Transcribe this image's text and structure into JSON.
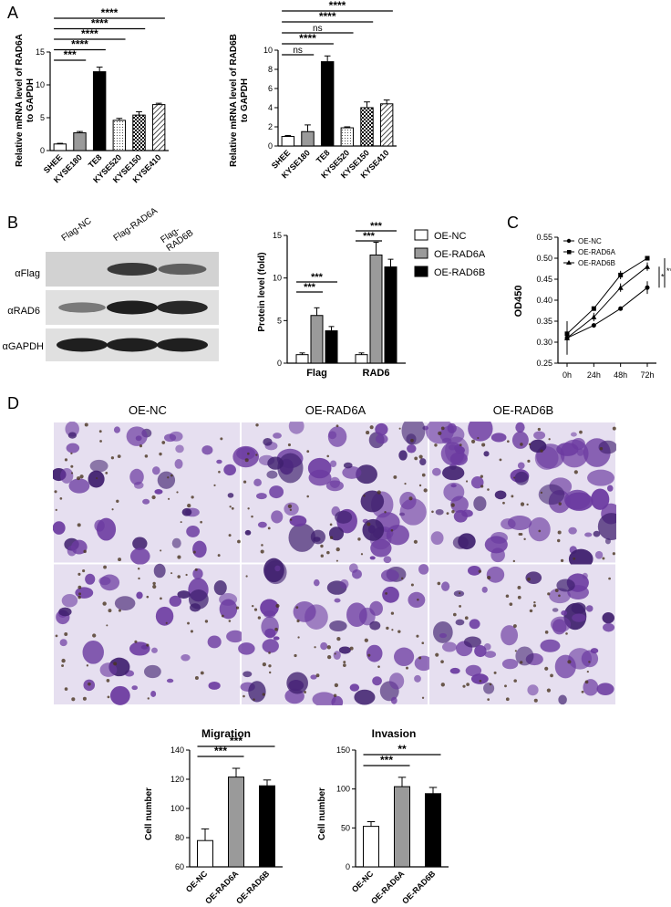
{
  "panels": {
    "a": "A",
    "b": "B",
    "c": "C",
    "d": "D"
  },
  "colors": {
    "black": "#000000",
    "white": "#ffffff",
    "gray": "#9a9a9a",
    "purple": "#6b3aa0",
    "purple_dark": "#3f1f6e",
    "field": "#e6dff0"
  },
  "chart_data": [
    {
      "id": "rad6a_mrna",
      "type": "bar",
      "ylabel": "Relative mRNA level of RAD6A to GAPDH",
      "categories": [
        "SHEE",
        "KYSE180",
        "TE8",
        "KYSE520",
        "KYSE150",
        "KYSE410"
      ],
      "values": [
        1.0,
        2.7,
        12.0,
        4.6,
        5.4,
        7.0
      ],
      "errors": [
        0.1,
        0.2,
        0.7,
        0.3,
        0.5,
        0.2
      ],
      "fills": [
        "white",
        "gray",
        "black",
        "dots",
        "checker",
        "hatch"
      ],
      "ylim": [
        0,
        15
      ],
      "yticks": [
        "0",
        "5",
        "10",
        "15"
      ],
      "significance": [
        {
          "from": 0,
          "to": 1,
          "label": "***"
        },
        {
          "from": 0,
          "to": 2,
          "label": "****"
        },
        {
          "from": 0,
          "to": 3,
          "label": "****"
        },
        {
          "from": 0,
          "to": 4,
          "label": "****"
        },
        {
          "from": 0,
          "to": 5,
          "label": "****"
        }
      ]
    },
    {
      "id": "rad6b_mrna",
      "type": "bar",
      "ylabel": "Relative mRNA level of RAD6B to GAPDH",
      "categories": [
        "SHEE",
        "KYSE180",
        "TE8",
        "KYSE520",
        "KYSE150",
        "KYSE410"
      ],
      "values": [
        1.0,
        1.5,
        8.8,
        1.9,
        4.0,
        4.4
      ],
      "errors": [
        0.1,
        0.7,
        0.6,
        0.1,
        0.6,
        0.4
      ],
      "fills": [
        "white",
        "gray",
        "black",
        "dots",
        "checker",
        "hatch"
      ],
      "ylim": [
        0,
        10
      ],
      "yticks": [
        "0",
        "2",
        "4",
        "6",
        "8",
        "10"
      ],
      "significance": [
        {
          "from": 0,
          "to": 1,
          "label": "ns"
        },
        {
          "from": 0,
          "to": 2,
          "label": "****"
        },
        {
          "from": 0,
          "to": 3,
          "label": "ns"
        },
        {
          "from": 0,
          "to": 4,
          "label": "****"
        },
        {
          "from": 0,
          "to": 5,
          "label": "****"
        }
      ]
    },
    {
      "id": "protein_level",
      "type": "bar",
      "ylabel": "Protein level (fold)",
      "categories": [
        "Flag",
        "RAD6"
      ],
      "series": [
        {
          "name": "OE-NC",
          "values": [
            1.0,
            1.0
          ],
          "errors": [
            0.2,
            0.2
          ],
          "fill": "white"
        },
        {
          "name": "OE-RAD6A",
          "values": [
            5.6,
            12.7
          ],
          "errors": [
            0.9,
            1.5
          ],
          "fill": "gray"
        },
        {
          "name": "OE-RAD6B",
          "values": [
            3.8,
            11.3
          ],
          "errors": [
            0.5,
            0.9
          ],
          "fill": "black"
        }
      ],
      "ylim": [
        0,
        15
      ],
      "yticks": [
        "0",
        "5",
        "10",
        "15"
      ],
      "legend": "right",
      "significance": [
        {
          "group": 0,
          "from": 0,
          "to": 1,
          "label": "***"
        },
        {
          "group": 0,
          "from": 0,
          "to": 2,
          "label": "***"
        },
        {
          "group": 1,
          "from": 0,
          "to": 1,
          "label": "***"
        },
        {
          "group": 1,
          "from": 0,
          "to": 2,
          "label": "***"
        }
      ]
    },
    {
      "id": "od450",
      "type": "line",
      "ylabel": "OD450",
      "x": [
        "0h",
        "24h",
        "48h",
        "72h"
      ],
      "series": [
        {
          "name": "OE-NC",
          "marker": "circle",
          "values": [
            0.31,
            0.34,
            0.38,
            0.43
          ],
          "errors": [
            0.01,
            0.005,
            0.005,
            0.015
          ]
        },
        {
          "name": "OE-RAD6A",
          "marker": "square",
          "values": [
            0.32,
            0.38,
            0.46,
            0.5
          ],
          "errors": [
            0.01,
            0.005,
            0.01,
            0.005
          ]
        },
        {
          "name": "OE-RAD6B",
          "marker": "triangle",
          "values": [
            0.31,
            0.36,
            0.43,
            0.48
          ],
          "errors": [
            0.04,
            0.01,
            0.01,
            0.01
          ]
        }
      ],
      "ylim": [
        0.25,
        0.55
      ],
      "yticks": [
        "0.25",
        "0.30",
        "0.35",
        "0.40",
        "0.45",
        "0.50",
        "0.55"
      ],
      "legend": "top-left",
      "significance": [
        {
          "label": "*"
        },
        {
          "label": "**"
        }
      ]
    },
    {
      "id": "migration",
      "type": "bar",
      "title": "Migration",
      "ylabel": "Cell number",
      "categories": [
        "OE-NC",
        "OE-RAD6A",
        "OE-RAD6B"
      ],
      "values": [
        78,
        121.5,
        115.5
      ],
      "errors": [
        8,
        6,
        4
      ],
      "fills": [
        "white",
        "gray",
        "black"
      ],
      "ylim": [
        60,
        140
      ],
      "yticks": [
        "60",
        "80",
        "100",
        "120",
        "140"
      ],
      "significance": [
        {
          "from": 0,
          "to": 1,
          "label": "***"
        },
        {
          "from": 0,
          "to": 2,
          "label": "***"
        }
      ]
    },
    {
      "id": "invasion",
      "type": "bar",
      "title": "Invasion",
      "ylabel": "Cell number",
      "categories": [
        "OE-NC",
        "OE-RAD6A",
        "OE-RAD6B"
      ],
      "values": [
        52,
        103,
        94
      ],
      "errors": [
        6,
        12,
        8
      ],
      "fills": [
        "white",
        "gray",
        "black"
      ],
      "ylim": [
        0,
        150
      ],
      "yticks": [
        "0",
        "50",
        "100",
        "150"
      ],
      "significance": [
        {
          "from": 0,
          "to": 1,
          "label": "***"
        },
        {
          "from": 0,
          "to": 2,
          "label": "**"
        }
      ]
    }
  ],
  "western_blot": {
    "lanes": [
      "Flag-NC",
      "Flag-RAD6A",
      "Flag-RAD6B"
    ],
    "rows": [
      {
        "label": "αFlag",
        "intensity": [
          0.0,
          0.85,
          0.6
        ]
      },
      {
        "label": "αRAD6",
        "intensity": [
          0.45,
          1.0,
          0.95
        ]
      },
      {
        "label": "αGAPDH",
        "intensity": [
          1.0,
          1.0,
          1.0
        ]
      }
    ]
  },
  "micrographs": {
    "columns": [
      "OE-NC",
      "OE-RAD6A",
      "OE-RAD6B"
    ],
    "rows": 2,
    "density": [
      [
        0.35,
        0.75,
        0.85
      ],
      [
        0.35,
        0.55,
        0.5
      ]
    ]
  }
}
